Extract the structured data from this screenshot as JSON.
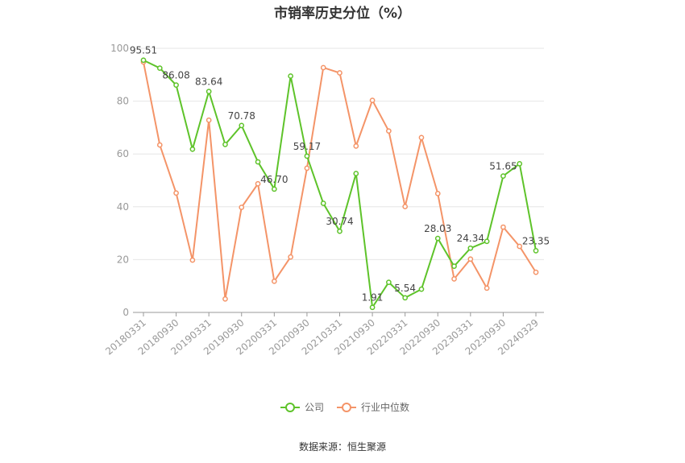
{
  "title": "市销率历史分位（%）",
  "source": "数据来源：恒生聚源",
  "chart_data": {
    "type": "line",
    "title": "市销率历史分位（%）",
    "ylim": [
      0,
      100
    ],
    "yticks": [
      0,
      20,
      40,
      60,
      80,
      100
    ],
    "grid": true,
    "legend_position": "bottom",
    "x": [
      "20180331",
      "20180630",
      "20180930",
      "20181231",
      "20190331",
      "20190630",
      "20190930",
      "20191231",
      "20200331",
      "20200630",
      "20200930",
      "20201231",
      "20210331",
      "20210630",
      "20210930",
      "20211231",
      "20220331",
      "20220630",
      "20220930",
      "20221231",
      "20230331",
      "20230630",
      "20230930",
      "20231231",
      "20240329"
    ],
    "x_tick_labels": [
      "20180331",
      "20180930",
      "20190331",
      "20190930",
      "20200331",
      "20200930",
      "20210331",
      "20210930",
      "20220331",
      "20220930",
      "20230331",
      "20230930",
      "20240329"
    ],
    "series": [
      {
        "name": "公司",
        "color": "#5ec32a",
        "values": [
          95.51,
          92.5,
          86.08,
          61.8,
          83.64,
          63.6,
          70.78,
          57.0,
          46.7,
          89.5,
          59.17,
          41.3,
          30.74,
          52.6,
          1.91,
          11.4,
          5.54,
          8.8,
          28.03,
          17.5,
          24.34,
          26.9,
          51.65,
          56.3,
          23.35
        ],
        "labels": {
          "0": "95.51",
          "2": "86.08",
          "4": "83.64",
          "6": "70.78",
          "8": "46.70",
          "10": "59.17",
          "12": "30.74",
          "14": "1.91",
          "16": "5.54",
          "18": "28.03",
          "20": "24.34",
          "22": "51.65",
          "24": "23.35"
        }
      },
      {
        "name": "行业中位数",
        "color": "#f49468",
        "values": [
          94.8,
          63.4,
          45.2,
          19.8,
          72.8,
          5.1,
          39.8,
          48.7,
          11.8,
          21.0,
          54.6,
          92.7,
          90.7,
          63.0,
          80.3,
          68.7,
          40.1,
          66.2,
          45.0,
          12.7,
          20.2,
          9.2,
          32.3,
          25.0,
          15.2
        ]
      }
    ]
  }
}
